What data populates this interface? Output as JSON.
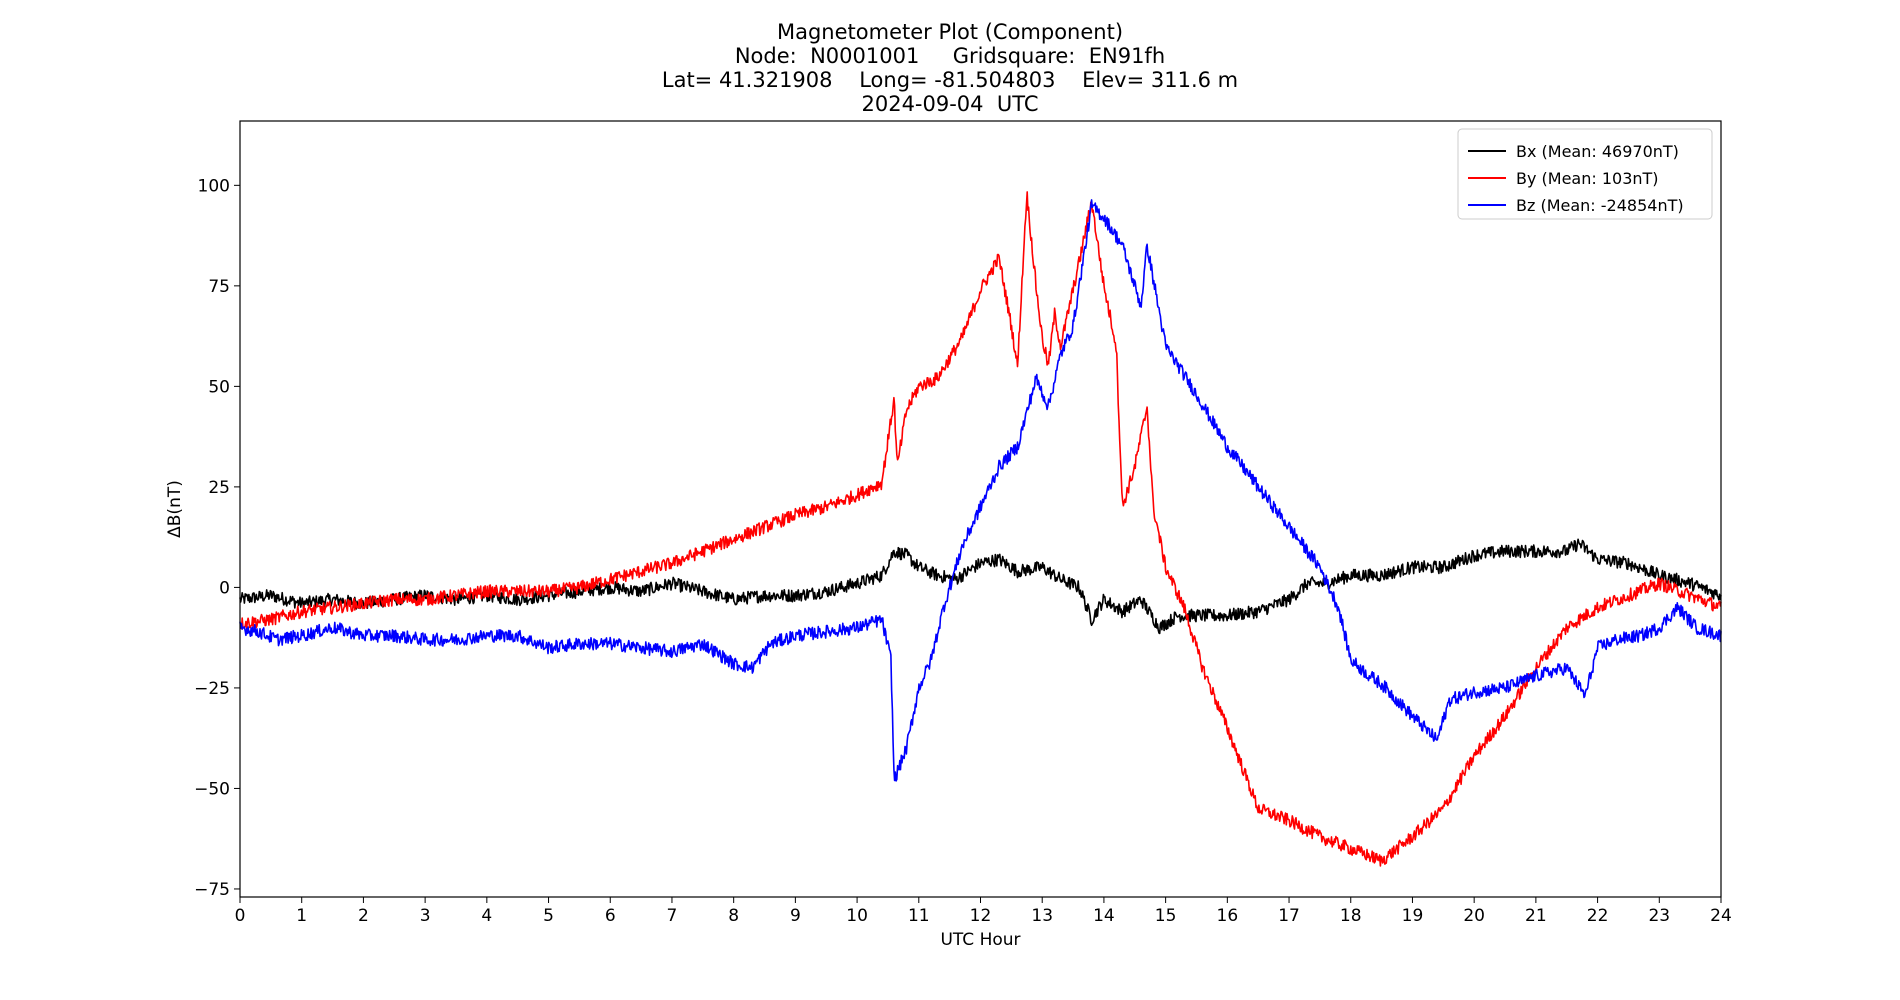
{
  "chart_data": {
    "type": "line",
    "title_lines": [
      "Magnetometer Plot (Component)",
      "Node:  N0001001     Gridsquare:  EN91fh",
      "Lat= 41.321908    Long= -81.504803    Elev= 311.6 m",
      "2024-09-04  UTC"
    ],
    "xlabel": "UTC Hour",
    "ylabel": "ΔB(nT)",
    "xlim": [
      0,
      24
    ],
    "ylim": [
      -77,
      116
    ],
    "xticks": [
      0,
      1,
      2,
      3,
      4,
      5,
      6,
      7,
      8,
      9,
      10,
      11,
      12,
      13,
      14,
      15,
      16,
      17,
      18,
      19,
      20,
      21,
      22,
      23,
      24
    ],
    "yticks": [
      -75,
      -50,
      -25,
      0,
      25,
      50,
      75,
      100
    ],
    "ytick_labels": [
      "−75",
      "−50",
      "−25",
      "0",
      "25",
      "50",
      "75",
      "100"
    ],
    "grid": false,
    "legend_position": "top-right",
    "series": [
      {
        "name": "Bx (Mean: 46970nT)",
        "color": "#000000",
        "x": [
          0,
          0.5,
          1,
          1.5,
          2,
          2.5,
          3,
          3.5,
          4,
          4.5,
          5,
          5.5,
          6,
          6.5,
          7,
          7.5,
          8,
          8.5,
          9,
          9.5,
          10,
          10.4,
          10.6,
          10.8,
          11,
          11.3,
          11.6,
          12,
          12.3,
          12.6,
          13,
          13.3,
          13.6,
          13.8,
          14,
          14.3,
          14.6,
          14.9,
          15.2,
          15.5,
          16,
          16.5,
          17,
          17.3,
          17.6,
          18,
          18.5,
          19,
          19.5,
          20,
          20.5,
          21,
          21.5,
          21.7,
          22,
          22.5,
          23,
          23.5,
          24
        ],
        "y": [
          -3,
          -2,
          -4,
          -3,
          -4,
          -3,
          -2,
          -3,
          -2,
          -3,
          -2,
          -1,
          0,
          -1,
          1,
          -1,
          -3,
          -2,
          -2,
          -1,
          1,
          3,
          9,
          8,
          5,
          3,
          2,
          6,
          7,
          4,
          5,
          2,
          0,
          -8,
          -3,
          -6,
          -3,
          -10,
          -7,
          -7,
          -7,
          -6,
          -3,
          1,
          1,
          3,
          3,
          5,
          5,
          8,
          9,
          9,
          9,
          11,
          7,
          6,
          3,
          1,
          -2
        ]
      },
      {
        "name": "By (Mean: 103nT)",
        "color": "#ff0000",
        "x": [
          0,
          0.5,
          1,
          1.5,
          2,
          2.5,
          3,
          3.5,
          4,
          4.5,
          5,
          5.5,
          6,
          6.5,
          7,
          7.5,
          8,
          8.5,
          9,
          9.5,
          10,
          10.4,
          10.6,
          10.65,
          10.8,
          11,
          11.3,
          11.7,
          12,
          12.3,
          12.5,
          12.6,
          12.75,
          12.9,
          13.0,
          13.1,
          13.2,
          13.3,
          13.5,
          13.6,
          13.8,
          14.0,
          14.2,
          14.3,
          14.5,
          14.7,
          14.8,
          15.0,
          15.3,
          15.6,
          16,
          16.5,
          17,
          17.5,
          18,
          18.5,
          19,
          19.5,
          20,
          20.5,
          21,
          21.5,
          22,
          22.5,
          23,
          23.5,
          24
        ],
        "y": [
          -9,
          -8,
          -6,
          -5,
          -4,
          -3,
          -3,
          -2,
          -1,
          -1,
          -1,
          0,
          2,
          4,
          6,
          9,
          12,
          15,
          18,
          20,
          23,
          26,
          47,
          30,
          44,
          50,
          52,
          62,
          74,
          82,
          65,
          55,
          98,
          75,
          62,
          55,
          68,
          60,
          74,
          81,
          96,
          75,
          60,
          20,
          30,
          45,
          20,
          5,
          -5,
          -20,
          -35,
          -55,
          -58,
          -62,
          -65,
          -68,
          -62,
          -55,
          -42,
          -32,
          -20,
          -10,
          -5,
          -2,
          1,
          -2,
          -5
        ]
      },
      {
        "name": "Bz (Mean: -24854nT)",
        "color": "#0000ff",
        "x": [
          0,
          0.3,
          0.6,
          1,
          1.5,
          2,
          2.5,
          3,
          3.5,
          4,
          4.5,
          5,
          5.5,
          6,
          6.5,
          7,
          7.5,
          8,
          8.3,
          8.6,
          9,
          9.5,
          10,
          10.4,
          10.55,
          10.6,
          10.8,
          11,
          11.2,
          11.4,
          11.7,
          12,
          12.3,
          12.6,
          12.9,
          13.1,
          13.3,
          13.5,
          13.8,
          14.0,
          14.3,
          14.6,
          14.7,
          15,
          15.5,
          16,
          16.5,
          17,
          17.5,
          17.8,
          18,
          18.3,
          18.5,
          19,
          19.2,
          19.4,
          19.6,
          20,
          20.5,
          21,
          21.5,
          21.8,
          22,
          22.3,
          22.7,
          23,
          23.3,
          23.6,
          24
        ],
        "y": [
          -10,
          -11,
          -13,
          -12,
          -10,
          -12,
          -12,
          -13,
          -13,
          -12,
          -12,
          -15,
          -14,
          -14,
          -15,
          -16,
          -14,
          -19,
          -20,
          -14,
          -12,
          -11,
          -10,
          -8,
          -18,
          -48,
          -40,
          -25,
          -18,
          -5,
          10,
          20,
          30,
          35,
          52,
          45,
          58,
          65,
          95,
          92,
          85,
          70,
          85,
          60,
          48,
          35,
          25,
          15,
          5,
          -5,
          -18,
          -22,
          -24,
          -32,
          -35,
          -38,
          -28,
          -26,
          -25,
          -22,
          -20,
          -27,
          -15,
          -13,
          -12,
          -10,
          -5,
          -10,
          -12
        ]
      }
    ]
  }
}
